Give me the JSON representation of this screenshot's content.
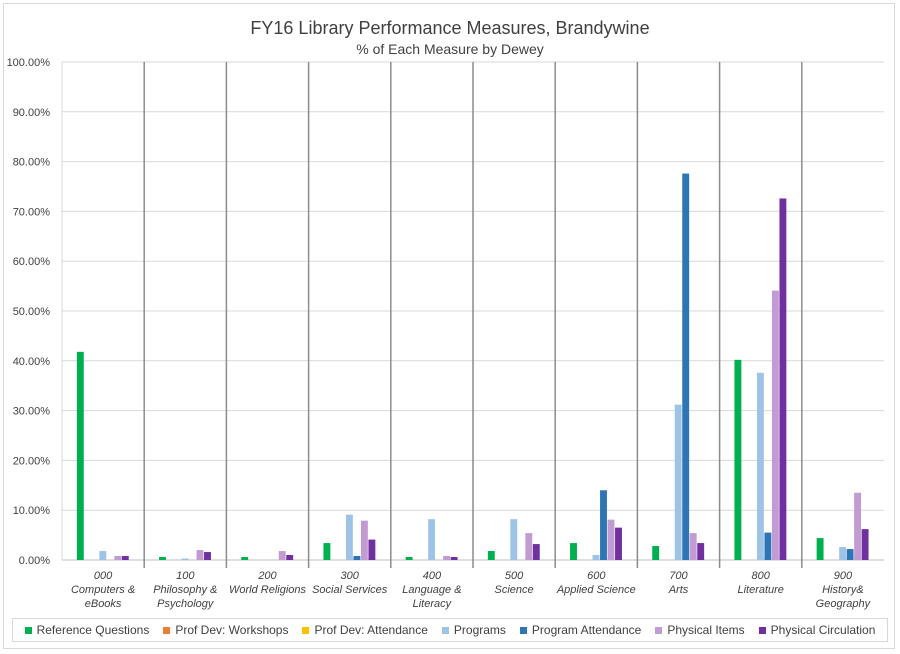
{
  "chart_data": {
    "type": "bar",
    "title": "FY16 Library Performance Measures, Brandywine",
    "subtitle": "% of Each Measure by Dewey",
    "xlabel": "",
    "ylabel": "",
    "ylim": [
      0,
      100
    ],
    "yticks": [
      "0.00%",
      "10.00%",
      "20.00%",
      "30.00%",
      "40.00%",
      "50.00%",
      "60.00%",
      "70.00%",
      "80.00%",
      "90.00%",
      "100.00%"
    ],
    "grid": true,
    "legend_position": "bottom",
    "categories": [
      [
        "000",
        "Computers &",
        "eBooks"
      ],
      [
        "100",
        "Philosophy &",
        "Psychology"
      ],
      [
        "200",
        "World Religions"
      ],
      [
        "300",
        "Social Services"
      ],
      [
        "400",
        "Language &",
        "Literacy"
      ],
      [
        "500",
        "Science"
      ],
      [
        "600",
        "Applied Science"
      ],
      [
        "700",
        "Arts"
      ],
      [
        "800",
        "Literature"
      ],
      [
        "900",
        "History&",
        "Geography"
      ]
    ],
    "series": [
      {
        "name": "Reference Questions",
        "color": "#00b050",
        "values": [
          41.8,
          0.6,
          0.6,
          3.4,
          0.6,
          1.8,
          3.4,
          2.8,
          40.2,
          4.4
        ]
      },
      {
        "name": "Prof Dev: Workshops",
        "color": "#ed7d31",
        "values": [
          0,
          0,
          0,
          0,
          0,
          0,
          0,
          0,
          0,
          0
        ]
      },
      {
        "name": "Prof Dev: Attendance",
        "color": "#ffc000",
        "values": [
          0,
          0,
          0,
          0,
          0,
          0,
          0,
          0,
          0,
          0
        ]
      },
      {
        "name": "Programs",
        "color": "#9dc3e6",
        "values": [
          1.8,
          0.3,
          0,
          9.1,
          8.2,
          8.2,
          1.0,
          31.2,
          37.6,
          2.6
        ]
      },
      {
        "name": "Program Attendance",
        "color": "#2e75b6",
        "values": [
          0,
          0,
          0,
          0.8,
          0,
          0,
          14.0,
          77.6,
          5.5,
          2.2
        ]
      },
      {
        "name": "Physical Items",
        "color": "#c39bd3",
        "values": [
          0.8,
          2.0,
          1.8,
          7.9,
          0.8,
          5.4,
          8.1,
          5.4,
          54.1,
          13.5
        ]
      },
      {
        "name": "Physical Circulation",
        "color": "#7030a0",
        "values": [
          0.8,
          1.6,
          1.0,
          4.1,
          0.6,
          3.2,
          6.5,
          3.4,
          72.6,
          6.2
        ]
      }
    ]
  }
}
